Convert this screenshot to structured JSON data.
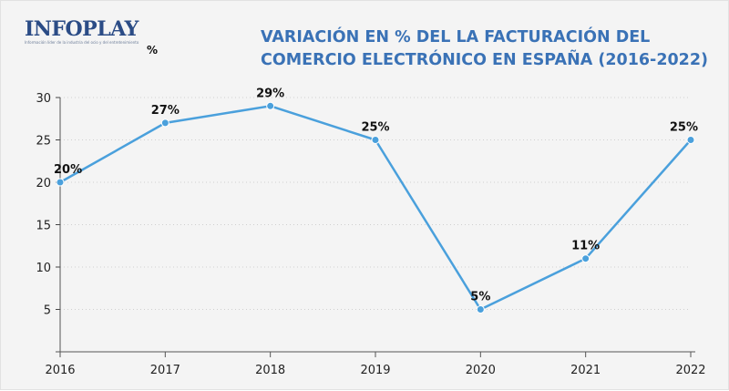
{
  "logo": {
    "name": "INFOPLAY",
    "tagline": "Información líder de la industria del ocio y del entretenimiento"
  },
  "title": "VARIACIÓN EN % DEL LA FACTURACIÓN DEL COMERCIO ELECTRÓNICO EN ESPAÑA (2016-2022)",
  "unit_label": "%",
  "colors": {
    "title": "#3a72b6",
    "line": "#4aa0dc",
    "point": "#4aa0dc",
    "grid": "#cfcfcf",
    "logo": "#2b4c86"
  },
  "chart_data": {
    "type": "line",
    "categories": [
      "2016",
      "2017",
      "2018",
      "2019",
      "2020",
      "2021",
      "2022"
    ],
    "series": [
      {
        "values": [
          20,
          27,
          29,
          25,
          5,
          11,
          25
        ],
        "labels": [
          "20%",
          "27%",
          "29%",
          "25%",
          "5%",
          "11%",
          "25%"
        ]
      }
    ],
    "yticks": [
      "5",
      "10",
      "15",
      "20",
      "25",
      "30"
    ],
    "ylim": [
      0,
      30
    ],
    "ylabel": "%",
    "grid": true
  }
}
